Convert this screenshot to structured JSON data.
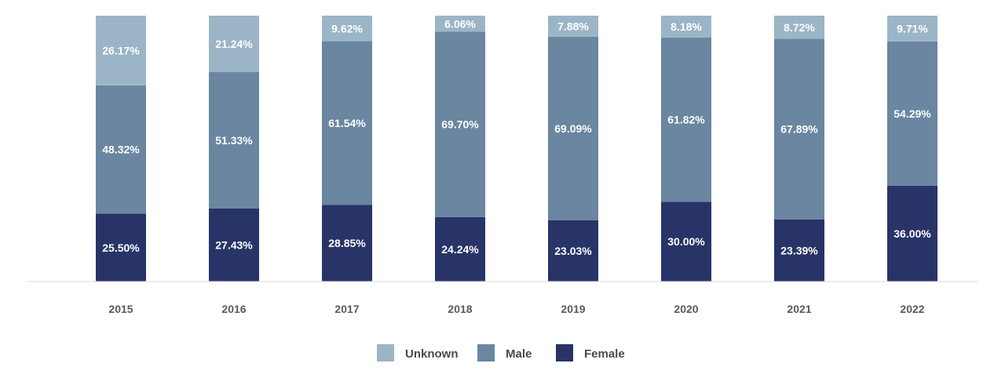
{
  "chart_data": {
    "type": "bar",
    "stacked": true,
    "title": "",
    "xlabel": "",
    "ylabel": "",
    "ylim": [
      0,
      100
    ],
    "grid": false,
    "legend_position": "bottom",
    "categories": [
      "2015",
      "2016",
      "2017",
      "2018",
      "2019",
      "2020",
      "2021",
      "2022"
    ],
    "series": [
      {
        "name": "Female",
        "color": "#283367",
        "values": [
          25.5,
          27.43,
          28.85,
          24.24,
          23.03,
          30.0,
          23.39,
          36.0
        ],
        "labels": [
          "25.50%",
          "27.43%",
          "28.85%",
          "24.24%",
          "23.03%",
          "30.00%",
          "23.39%",
          "36.00%"
        ]
      },
      {
        "name": "Male",
        "color": "#6a86a1",
        "values": [
          48.32,
          51.33,
          61.54,
          69.7,
          69.09,
          61.82,
          67.89,
          54.29
        ],
        "labels": [
          "48.32%",
          "51.33%",
          "61.54%",
          "69.70%",
          "69.09%",
          "61.82%",
          "67.89%",
          "54.29%"
        ]
      },
      {
        "name": "Unknown",
        "color": "#9bb5c7",
        "values": [
          26.17,
          21.24,
          9.62,
          6.06,
          7.88,
          8.18,
          8.72,
          9.71
        ],
        "labels": [
          "26.17%",
          "21.24%",
          "9.62%",
          "6.06%",
          "7.88%",
          "8.18%",
          "8.72%",
          "9.71%"
        ]
      }
    ],
    "legend_order": [
      "Unknown",
      "Male",
      "Female"
    ]
  }
}
